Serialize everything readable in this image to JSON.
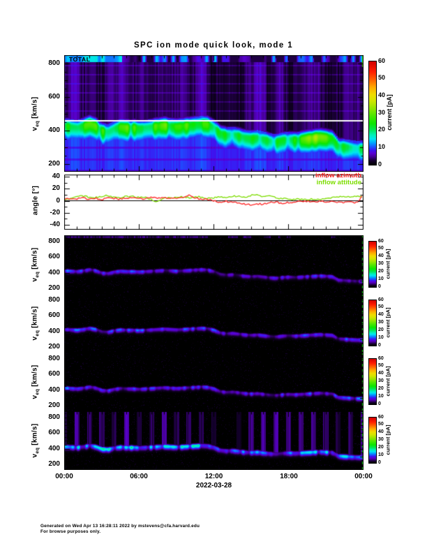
{
  "title": "SPC ion mode quick look, mode 1",
  "x_axis": {
    "tick_labels": [
      "00:00",
      "06:00",
      "12:00",
      "18:00",
      "00:00"
    ],
    "date_label": "2022-03-28"
  },
  "spectro_axis": {
    "ylabel_v": "v",
    "ylabel_sub": "eq",
    "ylabel_unit": " [km/s]",
    "ytick_labels": [
      "800",
      "600",
      "400",
      "200"
    ]
  },
  "angle_axis": {
    "ylabel": "angle [°]",
    "ytick_labels": [
      "40",
      "20",
      "0",
      "-20",
      "-40"
    ]
  },
  "colorbar": {
    "label": "current [pA]",
    "tick_labels": [
      "60",
      "50",
      "40",
      "30",
      "20",
      "10",
      "0"
    ]
  },
  "legend": {
    "azimuth": "inflow azimuth",
    "attitude": "inflow attitude"
  },
  "panel_labels": {
    "total": "TOTAL"
  },
  "footer": {
    "line1": "Generated on Wed Apr 13 16:28:11 2022 by mstevens@cfa.harvard.edu",
    "line2": "For browse purposes only."
  },
  "colors": {
    "background": "#ffffff",
    "frame": "#000000",
    "azimuth_line": "#ff2222",
    "attitude_line": "#7ddd00",
    "white_marker_line": "#ffffff",
    "edge_marker_green": "#00e878",
    "colormap_stops": [
      [
        0.0,
        "#000000"
      ],
      [
        0.04,
        "#160030"
      ],
      [
        0.08,
        "#47009a"
      ],
      [
        0.11,
        "#5a00d2"
      ],
      [
        0.14,
        "#3c14f0"
      ],
      [
        0.17,
        "#1e50ff"
      ],
      [
        0.21,
        "#00a0ff"
      ],
      [
        0.25,
        "#00e6f0"
      ],
      [
        0.29,
        "#00f0b4"
      ],
      [
        0.34,
        "#00e650"
      ],
      [
        0.4,
        "#0ce600"
      ],
      [
        0.48,
        "#50e600"
      ],
      [
        0.55,
        "#96e600"
      ],
      [
        0.62,
        "#d2e600"
      ],
      [
        0.68,
        "#f0dc00"
      ],
      [
        0.75,
        "#ffaa00"
      ],
      [
        0.82,
        "#ff6400"
      ],
      [
        0.9,
        "#ff1e00"
      ],
      [
        1.0,
        "#d20000"
      ]
    ]
  },
  "chart_data": {
    "x_hours": [
      0,
      0.5,
      1,
      1.5,
      2,
      2.5,
      3,
      3.5,
      4,
      4.5,
      5,
      5.5,
      6,
      6.5,
      7,
      7.5,
      8,
      8.5,
      9,
      9.5,
      10,
      10.5,
      11,
      11.5,
      12,
      12.5,
      13,
      13.5,
      14,
      14.5,
      15,
      15.5,
      16,
      16.5,
      17,
      17.5,
      18,
      18.5,
      19,
      19.5,
      20,
      20.5,
      21,
      21.5,
      22,
      22.5,
      23,
      23.5,
      24
    ],
    "band_center_kms": [
      430,
      425,
      420,
      430,
      445,
      430,
      400,
      395,
      415,
      425,
      420,
      420,
      415,
      420,
      425,
      430,
      435,
      430,
      425,
      430,
      435,
      440,
      445,
      440,
      420,
      385,
      375,
      380,
      370,
      360,
      355,
      360,
      350,
      340,
      335,
      345,
      350,
      345,
      350,
      355,
      360,
      365,
      360,
      355,
      310,
      305,
      300,
      295,
      295
    ],
    "spectrograms": [
      {
        "id": "total",
        "label": "TOTAL",
        "style": "total",
        "type": "heatmap",
        "ylabel": "veq [km/s]",
        "clabel": "current [pA]",
        "ylim_kms": [
          152,
          852
        ],
        "clim_pA": [
          0,
          60
        ],
        "white_line_kms": 460,
        "high_speed_band_kms": 850,
        "band_peak_pA": [
          24,
          24,
          25,
          23,
          24,
          25,
          24,
          25,
          26,
          26,
          26,
          25,
          21,
          20,
          20,
          21,
          20,
          20,
          21,
          24,
          33,
          31,
          22,
          20,
          20
        ]
      },
      {
        "id": "ion-1",
        "style": "dark",
        "type": "heatmap",
        "top_band": true,
        "ylabel": "veq [km/s]",
        "clabel": "current [pA]",
        "ylim_kms": [
          128,
          880
        ],
        "clim_pA": [
          0,
          60
        ],
        "band_peak_pA": [
          8,
          8,
          7,
          7,
          7,
          8,
          7,
          6,
          6,
          7,
          7,
          7,
          6,
          5,
          6,
          6,
          5,
          6,
          6,
          6,
          7,
          7,
          6,
          7,
          7
        ]
      },
      {
        "id": "ion-2",
        "style": "dark",
        "type": "heatmap",
        "ylabel": "veq [km/s]",
        "clabel": "current [pA]",
        "ylim_kms": [
          128,
          880
        ],
        "clim_pA": [
          0,
          60
        ],
        "band_peak_pA": [
          9,
          9,
          8,
          8,
          8,
          9,
          8,
          7,
          7,
          8,
          8,
          8,
          7,
          6,
          7,
          7,
          6,
          7,
          7,
          7,
          8,
          8,
          7,
          8,
          8
        ]
      },
      {
        "id": "ion-3",
        "style": "dark",
        "type": "heatmap",
        "ylabel": "veq [km/s]",
        "clabel": "current [pA]",
        "ylim_kms": [
          128,
          880
        ],
        "clim_pA": [
          0,
          60
        ],
        "band_peak_pA": [
          9,
          8,
          8,
          8,
          8,
          8,
          8,
          7,
          7,
          8,
          8,
          8,
          7,
          6,
          7,
          7,
          6,
          7,
          7,
          7,
          8,
          8,
          7,
          8,
          8
        ]
      },
      {
        "id": "ion-4",
        "style": "pillars",
        "type": "heatmap",
        "pillar_interval_hours": 1,
        "ylabel": "veq [km/s]",
        "clabel": "current [pA]",
        "ylim_kms": [
          128,
          880
        ],
        "clim_pA": [
          0,
          60
        ],
        "band_peak_pA": [
          13,
          13,
          12,
          13,
          12,
          13,
          12,
          11,
          11,
          12,
          12,
          12,
          9,
          8,
          9,
          10,
          9,
          10,
          10,
          10,
          11,
          11,
          10,
          12,
          12
        ]
      }
    ],
    "angles": {
      "type": "line",
      "ylabel": "angle [°]",
      "ylim_deg": [
        -44,
        44
      ],
      "series": [
        {
          "name": "inflow azimuth",
          "color": "#ff2222",
          "y_deg": [
            2,
            4,
            3,
            5,
            3,
            4,
            2,
            5,
            4,
            3,
            4,
            5,
            3,
            4,
            6,
            4,
            5,
            3,
            4,
            5,
            10,
            4,
            3,
            2,
            0,
            -2,
            -1,
            -3,
            -4,
            -6,
            -7,
            -5,
            -6,
            -3,
            -2,
            -4,
            -3,
            -2,
            0,
            -1,
            -2,
            -1,
            -2,
            -1,
            -2,
            -3,
            -2,
            -3,
            8
          ]
        },
        {
          "name": "inflow attitude",
          "color": "#7ddd00",
          "y_deg": [
            2,
            4,
            6,
            8,
            6,
            5,
            7,
            9,
            6,
            5,
            7,
            8,
            5,
            6,
            2,
            -2,
            4,
            6,
            5,
            6,
            5,
            7,
            6,
            4,
            5,
            6,
            5,
            7,
            8,
            6,
            9,
            10,
            7,
            8,
            5,
            4,
            3,
            2,
            3,
            2,
            3,
            2,
            4,
            5,
            6,
            7,
            6,
            8,
            6
          ]
        }
      ]
    }
  }
}
